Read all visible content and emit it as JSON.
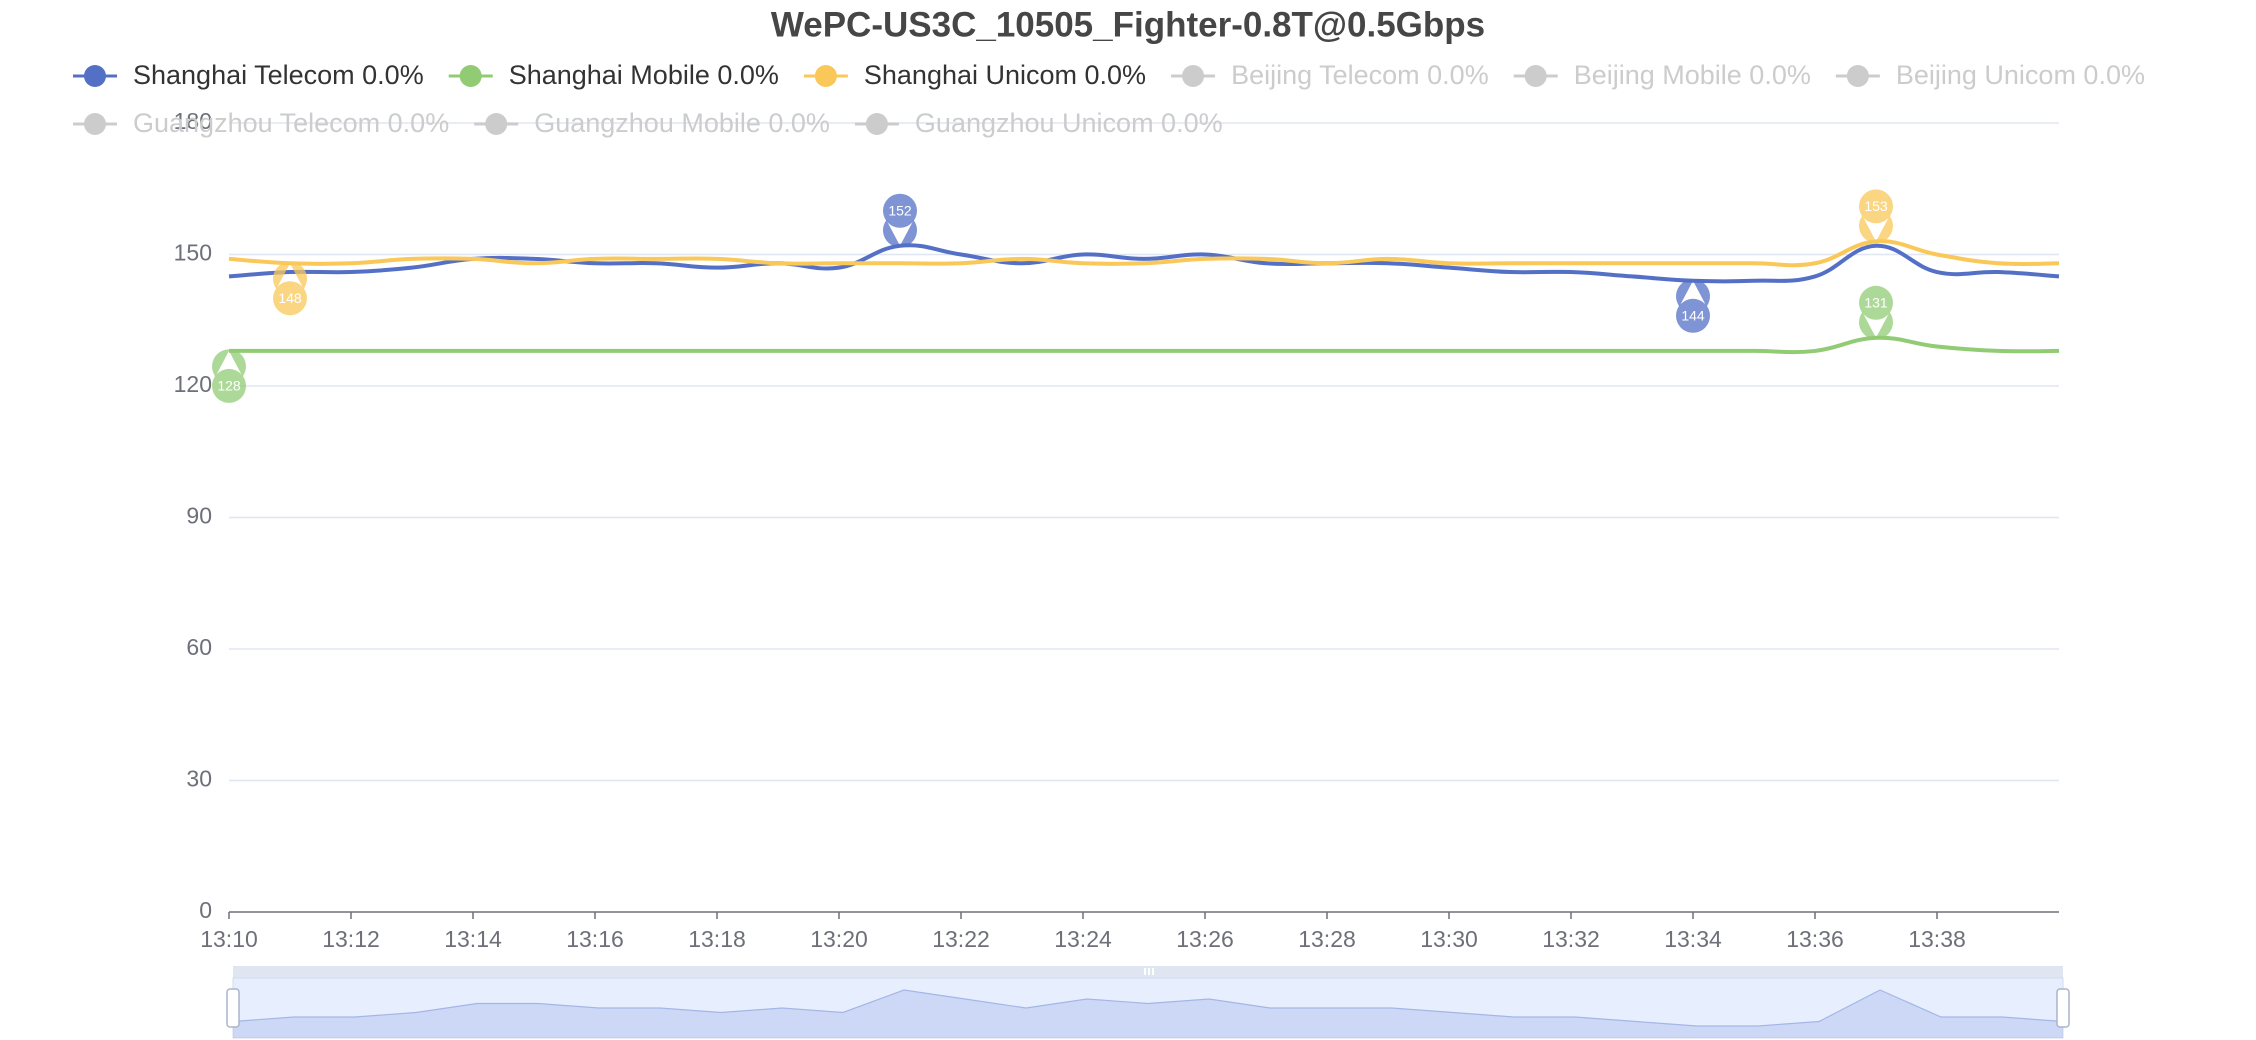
{
  "chart_data": {
    "type": "line",
    "title": "WePC-US3C_10505_Fighter-0.8T@0.5Gbps",
    "categories": [
      "13:10",
      null,
      "13:12",
      null,
      "13:14",
      null,
      "13:16",
      null,
      "13:18",
      null,
      "13:20",
      null,
      "13:22",
      null,
      "13:24",
      null,
      "13:26",
      null,
      "13:28",
      null,
      "13:30",
      null,
      "13:32",
      null,
      "13:34",
      null,
      "13:36",
      null,
      "13:38",
      null,
      null
    ],
    "ylim": [
      0,
      180
    ],
    "yticks": [
      0,
      30,
      60,
      90,
      120,
      150,
      180
    ],
    "grid": true,
    "smooth": true,
    "mark_points": [
      "max",
      "min"
    ],
    "series": [
      {
        "name": "Shanghai Telecom 0.0%",
        "color": "#5470c6",
        "selected": true,
        "values": [
          145,
          146,
          146,
          147,
          149,
          149,
          148,
          148,
          147,
          148,
          147,
          152,
          150,
          148,
          150,
          149,
          150,
          148,
          148,
          148,
          147,
          146,
          146,
          145,
          144,
          144,
          145,
          152,
          146,
          146,
          145
        ]
      },
      {
        "name": "Shanghai Mobile 0.0%",
        "color": "#91cc75",
        "selected": true,
        "values": [
          128,
          128,
          128,
          128,
          128,
          128,
          128,
          128,
          128,
          128,
          128,
          128,
          128,
          128,
          128,
          128,
          128,
          128,
          128,
          128,
          128,
          128,
          128,
          128,
          128,
          128,
          128,
          131,
          129,
          128,
          128
        ]
      },
      {
        "name": "Shanghai Unicom 0.0%",
        "color": "#fac858",
        "selected": true,
        "values": [
          149,
          148,
          148,
          149,
          149,
          148,
          149,
          149,
          149,
          148,
          148,
          148,
          148,
          149,
          148,
          148,
          149,
          149,
          148,
          149,
          148,
          148,
          148,
          148,
          148,
          148,
          148,
          153,
          150,
          148,
          148
        ]
      },
      {
        "name": "Beijing Telecom 0.0%",
        "selected": false
      },
      {
        "name": "Beijing Mobile 0.0%",
        "selected": false
      },
      {
        "name": "Beijing Unicom 0.0%",
        "selected": false
      },
      {
        "name": "Guangzhou Telecom 0.0%",
        "selected": false
      },
      {
        "name": "Guangzhou Mobile 0.0%",
        "selected": false
      },
      {
        "name": "Guangzhou Unicom 0.0%",
        "selected": false
      }
    ]
  }
}
